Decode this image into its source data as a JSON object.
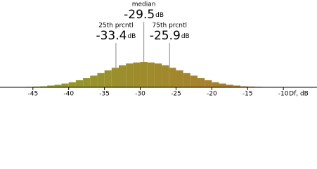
{
  "chart_data": {
    "type": "histogram",
    "x_label": "Df, dB",
    "bins": [
      -48,
      -47,
      -46,
      -45,
      -44,
      -43,
      -42,
      -41,
      -40,
      -39,
      -38,
      -37,
      -36,
      -35,
      -34,
      -33,
      -32,
      -31,
      -30,
      -29,
      -28,
      -27,
      -26,
      -25,
      -24,
      -23,
      -22,
      -21,
      -20,
      -19,
      -18,
      -17,
      -16,
      -15,
      -14,
      -13
    ],
    "values": [
      1,
      1,
      2,
      3,
      4,
      7,
      10,
      15,
      20,
      28,
      36,
      46,
      56,
      67,
      77,
      87,
      94,
      98,
      100,
      98,
      94,
      87,
      77,
      67,
      56,
      46,
      36,
      28,
      20,
      15,
      10,
      7,
      4,
      3,
      2
    ],
    "colors": [
      "#8e9e2c",
      "#ad7a2c"
    ],
    "xlim": [
      -49.6,
      -5.3
    ],
    "xticks": [
      -45,
      -40,
      -35,
      -30,
      -25,
      -20,
      -15,
      -10
    ],
    "ylim": [
      0,
      100
    ],
    "annotations": [
      {
        "text": "median",
        "value": -29.5,
        "unit": "dB",
        "row": 0
      },
      {
        "text": "25th prcntl",
        "value": -33.4,
        "unit": "dB",
        "row": 1
      },
      {
        "text": "75th prcntl",
        "value": -25.9,
        "unit": "dB",
        "row": 1
      }
    ]
  }
}
